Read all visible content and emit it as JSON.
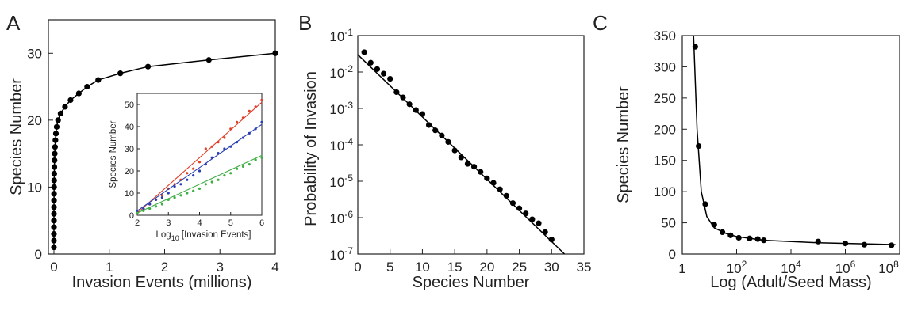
{
  "figure": {
    "panels": [
      {
        "letter": "A"
      },
      {
        "letter": "B"
      },
      {
        "letter": "C"
      }
    ]
  },
  "chart_data": [
    {
      "panel": "A",
      "type": "line",
      "xlabel": "Invasion Events (millions)",
      "ylabel": "Species Number",
      "xlim": [
        -0.1,
        4
      ],
      "ylim": [
        0,
        35
      ],
      "xticks": [
        0,
        1,
        2,
        3,
        4
      ],
      "yticks": [
        0,
        10,
        20,
        30
      ],
      "grid": false,
      "legend": "none",
      "series": [
        {
          "color": "#000000",
          "marker": "filled-circle",
          "x": [
            1e-05,
            3e-05,
            0.0001,
            0.0002,
            0.0004,
            0.0007,
            0.001,
            0.0015,
            0.002,
            0.003,
            0.004,
            0.006,
            0.008,
            0.011,
            0.015,
            0.02,
            0.027,
            0.036,
            0.05,
            0.075,
            0.12,
            0.2,
            0.3,
            0.45,
            0.6,
            0.8,
            1.2,
            1.7,
            2.8,
            4.0
          ],
          "y": [
            1,
            2,
            3,
            4,
            5,
            6,
            7,
            8,
            9,
            10,
            11,
            12,
            13,
            14,
            15,
            16,
            17,
            18,
            19,
            20,
            21,
            22,
            23,
            24,
            25,
            26,
            27,
            28,
            29,
            30
          ]
        }
      ],
      "inset": {
        "type": "scatter",
        "xlabel_prefix": "Log",
        "xlabel_sub": "10",
        "xlabel_rest": " [Invasion Events]",
        "ylabel": "Species Number",
        "xlim": [
          2,
          6
        ],
        "ylim": [
          0,
          55
        ],
        "xticks": [
          2,
          3,
          4,
          5,
          6
        ],
        "yticks": [
          0,
          10,
          20,
          30,
          40,
          50
        ],
        "series": [
          {
            "color": "#e0402a",
            "marker": "dot",
            "fit": [
              [
                2.0,
                1
              ],
              [
                6.0,
                51
              ]
            ],
            "x": [
              2.0,
              2.2,
              2.4,
              2.6,
              2.8,
              3.0,
              3.2,
              3.4,
              3.6,
              3.8,
              4.0,
              4.2,
              4.4,
              4.6,
              4.8,
              5.0,
              5.2,
              5.4,
              5.6,
              5.8,
              6.0
            ],
            "y": [
              1,
              3,
              5,
              7,
              9,
              12,
              14,
              16,
              19,
              21,
              24,
              30,
              31,
              33,
              35,
              39,
              42,
              44,
              47,
              49,
              52
            ]
          },
          {
            "color": "#2a3fb0",
            "marker": "dot",
            "fit": [
              [
                2.0,
                2
              ],
              [
                6.0,
                41
              ]
            ],
            "x": [
              2.0,
              2.2,
              2.4,
              2.6,
              2.8,
              3.0,
              3.2,
              3.4,
              3.6,
              3.8,
              4.0,
              4.2,
              4.4,
              4.6,
              4.8,
              5.0,
              5.2,
              5.4,
              5.6,
              5.8,
              6.0
            ],
            "y": [
              2,
              3,
              5,
              7,
              8,
              10,
              13,
              14,
              16,
              18,
              20,
              23,
              26,
              28,
              30,
              31,
              33,
              35,
              37,
              39,
              42
            ]
          },
          {
            "color": "#3fae45",
            "marker": "dot",
            "fit": [
              [
                2.0,
                1
              ],
              [
                6.0,
                27
              ]
            ],
            "x": [
              2.0,
              2.2,
              2.4,
              2.6,
              2.8,
              3.0,
              3.2,
              3.4,
              3.6,
              3.8,
              4.0,
              4.2,
              4.4,
              4.6,
              4.8,
              5.0,
              5.2,
              5.4,
              5.6,
              5.8,
              6.0
            ],
            "y": [
              1,
              2,
              3,
              4,
              5,
              7,
              8,
              9,
              10,
              11,
              12,
              14,
              15,
              16,
              18,
              19,
              21,
              22,
              23,
              25,
              26
            ]
          }
        ]
      }
    },
    {
      "panel": "B",
      "type": "scatter",
      "xlabel": "Species Number",
      "ylabel": "Probability of Invasion",
      "xlim": [
        0,
        35
      ],
      "ylim": [
        1e-07,
        0.1
      ],
      "yscale": "log",
      "xticks": [
        0,
        5,
        10,
        15,
        20,
        25,
        30,
        35
      ],
      "yticks": [
        {
          "base": "10",
          "exp": "-1",
          "value": 0.1
        },
        {
          "base": "10",
          "exp": "-2",
          "value": 0.01
        },
        {
          "base": "10",
          "exp": "-3",
          "value": 0.001
        },
        {
          "base": "10",
          "exp": "-4",
          "value": 0.0001
        },
        {
          "base": "10",
          "exp": "-5",
          "value": 1e-05
        },
        {
          "base": "10",
          "exp": "-6",
          "value": 1e-06
        },
        {
          "base": "10",
          "exp": "-7",
          "value": 1e-07
        }
      ],
      "grid": false,
      "legend": "none",
      "fit": [
        [
          0,
          0.03
        ],
        [
          32,
          1e-07
        ]
      ],
      "series": [
        {
          "color": "#000000",
          "marker": "filled-circle",
          "x": [
            1,
            2,
            3,
            4,
            5,
            6,
            7,
            8,
            9,
            10,
            11,
            12,
            13,
            14,
            15,
            16,
            17,
            18,
            19,
            20,
            21,
            22,
            23,
            24,
            25,
            26,
            27,
            28,
            29,
            30
          ],
          "y": [
            0.035,
            0.018,
            0.012,
            0.009,
            0.0065,
            0.0028,
            0.002,
            0.0013,
            0.0009,
            0.0007,
            0.00035,
            0.00025,
            0.00018,
            0.00012,
            7e-05,
            4.5e-05,
            3e-05,
            2.5e-05,
            1.8e-05,
            1.2e-05,
            9e-06,
            6e-06,
            4e-06,
            2.5e-06,
            1.8e-06,
            1.3e-06,
            9e-07,
            7e-07,
            4e-07,
            2.5e-07
          ]
        }
      ]
    },
    {
      "panel": "C",
      "type": "scatter",
      "xlabel": "Log (Adult/Seed Mass)",
      "ylabel": "Species Number",
      "xlim": [
        1,
        100000000
      ],
      "xscale": "log",
      "ylim": [
        0,
        350
      ],
      "xticks": [
        {
          "label": "1",
          "value": 1
        },
        {
          "base": "10",
          "exp": "2",
          "value": 100
        },
        {
          "base": "10",
          "exp": "4",
          "value": 10000
        },
        {
          "base": "10",
          "exp": "6",
          "value": 1000000
        },
        {
          "base": "10",
          "exp": "8",
          "value": 100000000
        }
      ],
      "yticks": [
        0,
        50,
        100,
        150,
        200,
        250,
        300,
        350
      ],
      "grid": false,
      "legend": "none",
      "fit": [
        [
          2.6,
          350
        ],
        [
          3.5,
          200
        ],
        [
          5,
          100
        ],
        [
          8,
          60
        ],
        [
          15,
          42
        ],
        [
          40,
          33
        ],
        [
          100,
          28
        ],
        [
          1000,
          22
        ],
        [
          100000,
          18
        ],
        [
          10000000,
          16
        ],
        [
          70000000,
          15
        ]
      ],
      "series": [
        {
          "color": "#000000",
          "marker": "filled-circle",
          "x": [
            3,
            4,
            7,
            15,
            30,
            60,
            120,
            300,
            600,
            1000,
            100000,
            1000000,
            5000000,
            50000000
          ],
          "y": [
            332,
            173,
            80,
            47,
            35,
            30,
            26,
            25,
            24,
            22,
            20,
            17,
            15,
            14
          ]
        }
      ]
    }
  ]
}
